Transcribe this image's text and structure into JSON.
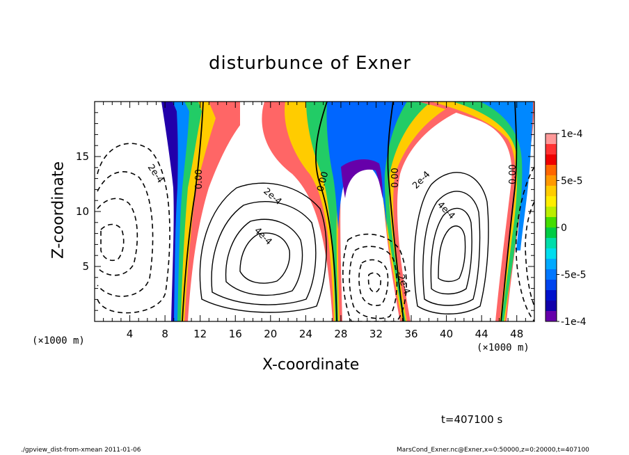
{
  "chart_data": {
    "type": "heatmap",
    "title": "disturbunce of Exner",
    "xlabel": "X-coordinate",
    "ylabel": "Z-coordinate",
    "x_unit": "(×1000 m)",
    "xlim": [
      0,
      50
    ],
    "ylim": [
      0,
      20
    ],
    "x_ticks": [
      "4",
      "8",
      "12",
      "16",
      "20",
      "24",
      "28",
      "32",
      "36",
      "40",
      "44",
      "48"
    ],
    "y_ticks": [
      "5",
      "10",
      "15"
    ],
    "colorbar": {
      "range": [
        -0.0001,
        0.0001
      ],
      "tick_labels": [
        "1e-4",
        "5e-5",
        "0",
        "-5e-5",
        "-1e-4"
      ],
      "colors": [
        "#ff9999",
        "#ff3333",
        "#ee0000",
        "#ff6600",
        "#ff9900",
        "#ffcc00",
        "#ffee00",
        "#bbee00",
        "#44dd00",
        "#00cc44",
        "#00ddaa",
        "#00ddee",
        "#00aaff",
        "#0077ff",
        "#0044ee",
        "#0011cc",
        "#1100aa",
        "#6600aa"
      ]
    },
    "contour_labels": [
      "2e-4",
      "0.00",
      "2e-4",
      "4e-4",
      "0.00",
      "0.00",
      "2e-4",
      "4e-4",
      "0.00",
      "-2e-4"
    ]
  },
  "time_label": "t=407100 s",
  "footer_left": "./gpview_dist-from-xmean  2011-01-06",
  "footer_right": "MarsCond_Exner.nc@Exner,x=0:50000,z=0:20000,t=407100"
}
